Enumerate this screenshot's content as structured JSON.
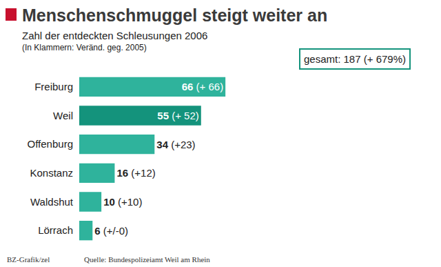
{
  "chart_data": {
    "type": "bar",
    "orientation": "horizontal",
    "title": "Menschenschmuggel steigt weiter an",
    "subtitle": [
      "Zahl der entdeckten Schleusungen 2006",
      "(In Klammern: Veränd. geg. 2005)"
    ],
    "categories": [
      "Freiburg",
      "Weil",
      "Offenburg",
      "Konstanz",
      "Waldshut",
      "Lörrach"
    ],
    "values": [
      66,
      55,
      34,
      16,
      10,
      6
    ],
    "change_labels": [
      "(+ 66)",
      "(+ 52)",
      "(+23)",
      "(+12)",
      "(+10)",
      "(+/-0)"
    ],
    "colors": [
      "#2fb39c",
      "#14937c",
      "#2fb39c",
      "#2fb39c",
      "#2fb39c",
      "#2fb39c"
    ],
    "xlim": [
      0,
      70
    ],
    "data_labels": true,
    "tick_labels": "y",
    "grid": false,
    "annotations": [
      "gesamt: 187 (+ 679%)"
    ],
    "source": [
      "BZ-Grafik/zel",
      "Quelle: Bundespolizeiamt Weil am Rhein"
    ]
  }
}
